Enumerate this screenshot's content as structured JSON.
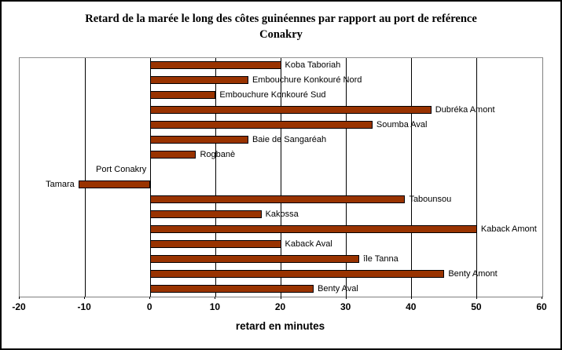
{
  "title": "Retard de la marée le long des côtes guinéennes par rapport au port de reférence Conakry",
  "chart_data": {
    "type": "bar",
    "orientation": "horizontal",
    "title": "Retard de la marée le long des côtes guinéennes par rapport au port de reférence Conakry",
    "xlabel": "retard en minutes",
    "xlim": [
      -20,
      60
    ],
    "xticks": [
      -20,
      -10,
      0,
      10,
      20,
      30,
      40,
      50,
      60
    ],
    "grid": true,
    "legend": false,
    "bar_color": "#993300",
    "categories": [
      "Koba Taboriah",
      "Embouchure Konkouré Nord",
      "Embouchure Konkouré Sud",
      "Dubréka Amont",
      "Soumba Aval",
      "Baie de Sangaréah",
      "Rogbanè",
      "Port Conakry",
      "Tamara",
      "Tabounsou",
      "Kakossa",
      "Kaback Amont",
      "Kaback Aval",
      "île Tanna",
      "Benty Amont",
      "Benty Aval"
    ],
    "values": [
      20,
      15,
      10,
      43,
      34,
      15,
      7,
      0,
      -11,
      39,
      17,
      50,
      20,
      32,
      45,
      25
    ]
  }
}
